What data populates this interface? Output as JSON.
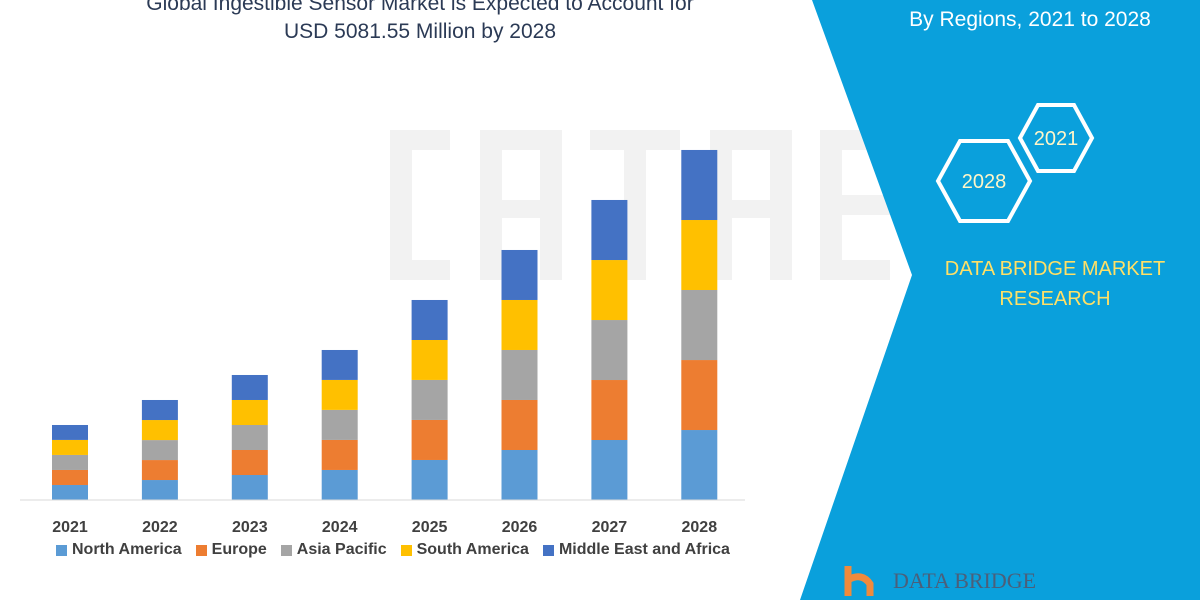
{
  "title_line2": "USD 5081.55 Million by 2028",
  "title_line1": "Global Ingestible Sensor Market is Expected to Account for",
  "right_panel": {
    "subtitle": "By Regions, 2021 to 2028",
    "hex_labels": [
      "2021",
      "2028"
    ],
    "brand": "DATA BRIDGE MARKET RESEARCH",
    "logo_text": "DATA BRIDGE",
    "color": "#0aa0dc"
  },
  "chart_data": {
    "type": "bar",
    "stacked": true,
    "categories": [
      "2021",
      "2022",
      "2023",
      "2024",
      "2025",
      "2026",
      "2027",
      "2028"
    ],
    "series": [
      {
        "name": "North America",
        "color": "#5b9bd5",
        "values": [
          218,
          290,
          363,
          436,
          581,
          726,
          871,
          1016
        ]
      },
      {
        "name": "Europe",
        "color": "#ed7d31",
        "values": [
          218,
          290,
          363,
          436,
          581,
          726,
          871,
          1016
        ]
      },
      {
        "name": "Asia Pacific",
        "color": "#a5a5a5",
        "values": [
          218,
          290,
          363,
          436,
          581,
          726,
          871,
          1017
        ]
      },
      {
        "name": "South America",
        "color": "#ffc000",
        "values": [
          218,
          291,
          363,
          435,
          580,
          726,
          871,
          1016
        ]
      },
      {
        "name": "Middle East and Africa",
        "color": "#4472c4",
        "values": [
          217,
          291,
          363,
          435,
          581,
          726,
          872,
          1017
        ]
      }
    ],
    "ylim": [
      0,
      5400
    ],
    "grid": false,
    "legend_position": "bottom"
  }
}
